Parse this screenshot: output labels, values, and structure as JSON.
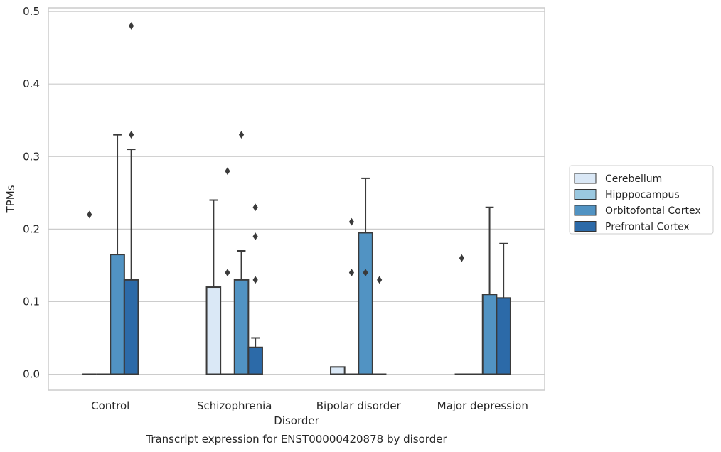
{
  "caption": "Transcript expression for ENST00000420878 by disorder",
  "chart_data": {
    "type": "bar",
    "subtype": "box-plot-with-outliers",
    "xlabel": "Disorder",
    "ylabel": "TPMs",
    "ylim": [
      -0.022,
      0.505
    ],
    "yticks": [
      0.0,
      0.1,
      0.2,
      0.3,
      0.4,
      0.5
    ],
    "ytick_labels": [
      "0.0",
      "0.1",
      "0.2",
      "0.3",
      "0.4",
      "0.5"
    ],
    "grid": true,
    "legend_placement": "center-right",
    "categories": [
      "Control",
      "Schizophrenia",
      "Bipolar disorder",
      "Major depression"
    ],
    "series": [
      {
        "name": "Cerebellum",
        "color": "#dae8f6",
        "boxes": [
          {
            "q1": 0,
            "q3": 0,
            "median": 0,
            "whisker_high": 0,
            "outliers": [
              0.22
            ]
          },
          {
            "q1": 0,
            "q3": 0.12,
            "median": 0,
            "whisker_high": 0.24,
            "outliers": []
          },
          {
            "q1": 0,
            "q3": 0.01,
            "median": 0,
            "whisker_high": 0.01,
            "outliers": []
          },
          {
            "q1": 0,
            "q3": 0,
            "median": 0,
            "whisker_high": 0,
            "outliers": [
              0.16
            ]
          }
        ]
      },
      {
        "name": "Hipppocampus",
        "color": "#9ac8e0",
        "boxes": [
          {
            "q1": 0,
            "q3": 0,
            "median": 0,
            "whisker_high": 0,
            "outliers": []
          },
          {
            "q1": 0,
            "q3": 0,
            "median": 0,
            "whisker_high": 0,
            "outliers": [
              0.14,
              0.28
            ]
          },
          {
            "q1": 0,
            "q3": 0,
            "median": 0,
            "whisker_high": 0,
            "outliers": [
              0.14,
              0.21
            ]
          },
          {
            "q1": 0,
            "q3": 0,
            "median": 0,
            "whisker_high": 0,
            "outliers": []
          }
        ]
      },
      {
        "name": "Orbitofontal Cortex",
        "color": "#5193c3",
        "boxes": [
          {
            "q1": 0,
            "q3": 0.165,
            "median": 0,
            "whisker_high": 0.33,
            "outliers": []
          },
          {
            "q1": 0,
            "q3": 0.13,
            "median": 0,
            "whisker_high": 0.17,
            "outliers": [
              0.33
            ]
          },
          {
            "q1": 0,
            "q3": 0.195,
            "median": 0,
            "whisker_high": 0.27,
            "outliers": [
              0.14
            ]
          },
          {
            "q1": 0,
            "q3": 0.11,
            "median": 0,
            "whisker_high": 0.23,
            "outliers": []
          }
        ]
      },
      {
        "name": "Prefrontal Cortex",
        "color": "#2c6aa8",
        "boxes": [
          {
            "q1": 0,
            "q3": 0.13,
            "median": 0,
            "whisker_high": 0.31,
            "outliers": [
              0.33,
              0.48
            ]
          },
          {
            "q1": 0,
            "q3": 0.037,
            "median": 0,
            "whisker_high": 0.05,
            "outliers": [
              0.13,
              0.19,
              0.23
            ]
          },
          {
            "q1": 0,
            "q3": 0,
            "median": 0,
            "whisker_high": 0,
            "outliers": [
              0.13
            ]
          },
          {
            "q1": 0,
            "q3": 0.105,
            "median": 0,
            "whisker_high": 0.18,
            "outliers": []
          }
        ]
      }
    ]
  }
}
